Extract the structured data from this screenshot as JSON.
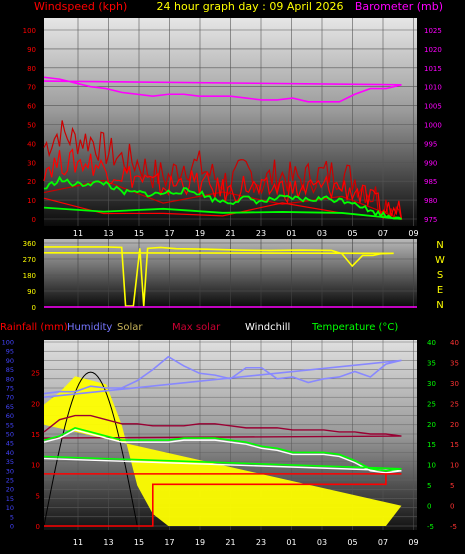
{
  "header": {
    "left": "Windspeed (kph)",
    "center": "24 hour graph day : 09 April 2026",
    "right": "Barometer (mb)"
  },
  "colors": {
    "wind": "#ff0000",
    "gust": "#cc0000",
    "avg": "#00ff00",
    "baro": "#ff00ff",
    "dir": "#ffff00",
    "rain": "#ff0000",
    "humidity": "#7777ff",
    "solar": "#ffff00",
    "maxsolar": "#000000",
    "windchill": "#ffffff",
    "temp": "#00ff00",
    "tempmaxline": "#990033",
    "labels_left": "#ff0000",
    "labels_right": "#ff00ff",
    "labels_bottom_left": "#0000ff",
    "labels_bottom_right": "#ff0000"
  },
  "x_ticks": [
    "11",
    "13",
    "15",
    "17",
    "19",
    "21",
    "23",
    "01",
    "03",
    "05",
    "07",
    "09"
  ],
  "chart_data": [
    {
      "type": "line",
      "title": "24 hour graph day : 09 April 2026",
      "ylabel": "Windspeed (kph)",
      "y2label": "Barometer (mb)",
      "ylim": [
        0,
        100
      ],
      "y2lim": [
        975,
        1025
      ],
      "y_ticks": [
        0,
        10,
        20,
        30,
        40,
        50,
        60,
        70,
        80,
        90,
        100
      ],
      "y2_ticks": [
        975,
        980,
        985,
        990,
        995,
        1000,
        1005,
        1010,
        1015,
        1020,
        1025
      ],
      "x": [
        "09:30",
        "10:30",
        "11:30",
        "12:30",
        "13:30",
        "14:30",
        "15:30",
        "16:30",
        "17:30",
        "18:30",
        "19:30",
        "20:30",
        "21:30",
        "22:30",
        "23:30",
        "00:30",
        "01:30",
        "02:30",
        "03:30",
        "04:30",
        "05:30",
        "06:30",
        "07:30",
        "08:30",
        "09:30"
      ],
      "series": [
        {
          "name": "gust",
          "values": [
            38,
            46,
            42,
            42,
            36,
            32,
            30,
            24,
            22,
            29,
            28,
            22,
            19,
            26,
            19,
            24,
            21,
            22,
            24,
            24,
            21,
            14,
            8,
            6,
            14
          ]
        },
        {
          "name": "wind",
          "values": [
            27,
            30,
            30,
            30,
            26,
            24,
            22,
            18,
            17,
            20,
            19,
            16,
            14,
            18,
            14,
            17,
            15,
            16,
            17,
            17,
            15,
            9,
            5,
            4,
            11
          ]
        },
        {
          "name": "average",
          "values": [
            16,
            21,
            18,
            19,
            19,
            14,
            14,
            13,
            14,
            15,
            14,
            10,
            9,
            11,
            9,
            11,
            11,
            10,
            11,
            10,
            9,
            4,
            2,
            1,
            6
          ]
        },
        {
          "name": "barometer",
          "values": [
            1012.5,
            1012,
            1011,
            1010,
            1009.5,
            1008.5,
            1008,
            1007.5,
            1008,
            1008,
            1007.5,
            1007.5,
            1007.5,
            1007,
            1006.5,
            1006.5,
            1007,
            1006,
            1006,
            1006,
            1008,
            1009.5,
            1009.5,
            1010.5,
            1011.5
          ]
        }
      ]
    },
    {
      "type": "line",
      "ylabel": "Wind direction",
      "ylim": [
        0,
        360
      ],
      "y_ticks": [
        0,
        90,
        180,
        270,
        360
      ],
      "compass": [
        "N",
        "W",
        "S",
        "E",
        "N"
      ],
      "x": [
        "09:30",
        "10:30",
        "11:30",
        "12:30",
        "13:30",
        "14:30",
        "14:45",
        "15:15",
        "15:40",
        "15:55",
        "16:10",
        "17:00",
        "18:00",
        "20:00",
        "22:00",
        "00:00",
        "02:00",
        "04:00",
        "04:40",
        "05:20",
        "06:00",
        "06:40",
        "07:10",
        "08:00",
        "09:30"
      ],
      "series": [
        {
          "name": "direction",
          "values": [
            338,
            338,
            338,
            338,
            338,
            335,
            5,
            5,
            330,
            5,
            330,
            335,
            328,
            325,
            320,
            318,
            320,
            318,
            300,
            230,
            290,
            290,
            300,
            302,
            305
          ]
        }
      ]
    },
    {
      "type": "line",
      "ylim": [
        0,
        100
      ],
      "y_ticks": [
        0,
        5,
        10,
        15,
        20,
        25,
        30,
        35,
        40,
        45,
        50,
        55,
        60,
        65,
        70,
        75,
        80,
        85,
        90,
        95,
        100
      ],
      "y2lim": [
        -5,
        40
      ],
      "y2_ticks": [
        -5,
        0,
        5,
        10,
        15,
        20,
        25,
        30,
        35,
        40
      ],
      "legend": [
        "Rainfall (mm)",
        "Humidity",
        "Solar",
        "Max solar",
        "Windchill",
        "Temperature (°C)"
      ],
      "x": [
        "09:30",
        "10:30",
        "11:30",
        "12:30",
        "13:30",
        "14:30",
        "15:30",
        "16:30",
        "17:30",
        "18:30",
        "19:30",
        "20:30",
        "21:30",
        "22:30",
        "23:30",
        "00:30",
        "01:30",
        "02:30",
        "03:30",
        "04:30",
        "05:30",
        "06:30",
        "07:30",
        "08:30",
        "09:30"
      ],
      "series": [
        {
          "name": "Humidity",
          "values": [
            72,
            73,
            73,
            76,
            75,
            75,
            79,
            85,
            92,
            87,
            83,
            82,
            80,
            86,
            86,
            80,
            81,
            78,
            80,
            81,
            84,
            81,
            88,
            90,
            70
          ]
        },
        {
          "name": "Temperature (°C)",
          "values": [
            16,
            17,
            19,
            18,
            17,
            16,
            16,
            16,
            16,
            16.5,
            16.5,
            16.5,
            16,
            15.5,
            14.5,
            14,
            13,
            13,
            13,
            12.5,
            11,
            9,
            8.5,
            9,
            12
          ]
        },
        {
          "name": "Windchill",
          "values": [
            15.5,
            16.5,
            18.5,
            17.5,
            16.5,
            15.5,
            15.5,
            15.5,
            15.5,
            16,
            16,
            16,
            15.5,
            15,
            14,
            13.5,
            12.5,
            12.5,
            12.5,
            12,
            10.5,
            8.5,
            8,
            8.5,
            11.5
          ]
        },
        {
          "name": "Max solar",
          "values": [
            18,
            21,
            22,
            22,
            21,
            20,
            20,
            19.5,
            19.5,
            19.5,
            20,
            20,
            19.5,
            19,
            19,
            19,
            18.5,
            18.5,
            18.5,
            18,
            18,
            17.5,
            17.5,
            17,
            16.5
          ]
        },
        {
          "name": "Rainfall (mm)",
          "values": [
            0,
            0,
            0,
            0,
            0,
            0,
            0,
            4,
            4,
            4,
            4,
            4,
            4,
            4,
            4,
            4,
            4,
            4,
            4,
            4,
            4,
            4,
            5,
            5,
            5
          ]
        },
        {
          "name": "Solar",
          "values": [
            30,
            33,
            37,
            36,
            35,
            25,
            10,
            3,
            0,
            0,
            0,
            0,
            0,
            0,
            0,
            0,
            0,
            0,
            0,
            0,
            0,
            0,
            0,
            5,
            25
          ]
        }
      ]
    }
  ]
}
